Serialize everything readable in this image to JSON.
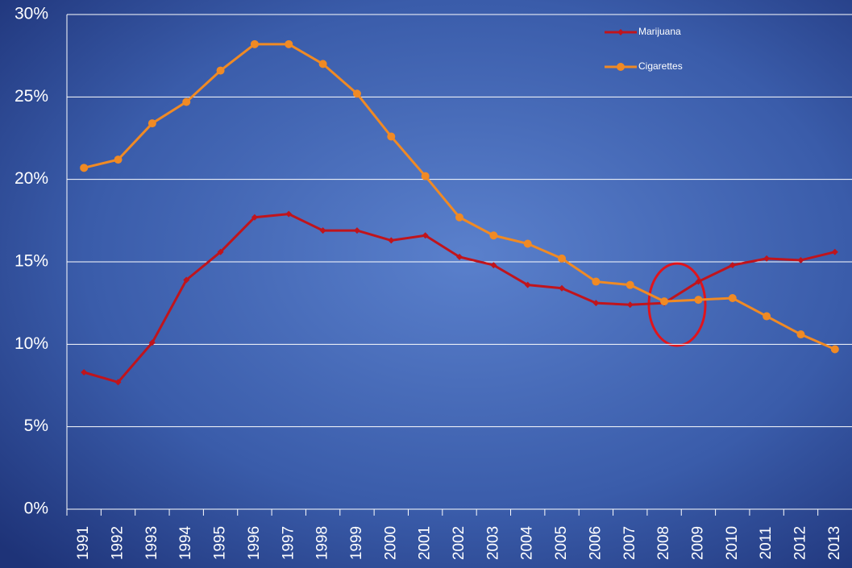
{
  "chart_data": {
    "type": "line",
    "categories": [
      "1991",
      "1992",
      "1993",
      "1994",
      "1995",
      "1996",
      "1997",
      "1998",
      "1999",
      "2000",
      "2001",
      "2002",
      "2003",
      "2004",
      "2005",
      "2006",
      "2007",
      "2008",
      "2009",
      "2010",
      "2011",
      "2012",
      "2013"
    ],
    "series": [
      {
        "name": "Marijuana",
        "color": "#c0141c",
        "marker": "diamond",
        "values": [
          8.3,
          7.7,
          10.1,
          13.9,
          15.6,
          17.7,
          17.9,
          16.9,
          16.9,
          16.3,
          16.6,
          15.3,
          14.8,
          13.6,
          13.4,
          12.5,
          12.4,
          12.5,
          13.8,
          14.8,
          15.2,
          15.1,
          15.6
        ]
      },
      {
        "name": "Cigarettes",
        "color": "#f08a24",
        "marker": "circle",
        "values": [
          20.7,
          21.2,
          23.4,
          24.7,
          26.6,
          28.2,
          28.2,
          27.0,
          25.2,
          22.6,
          20.2,
          17.7,
          16.6,
          16.1,
          15.2,
          13.8,
          13.6,
          12.6,
          12.7,
          12.8,
          11.7,
          10.6,
          9.7
        ]
      }
    ],
    "ylim": [
      0,
      30
    ],
    "yticks": [
      {
        "value": 0,
        "label": "0%"
      },
      {
        "value": 5,
        "label": "5%"
      },
      {
        "value": 10,
        "label": "10%"
      },
      {
        "value": 15,
        "label": "15%"
      },
      {
        "value": 20,
        "label": "20%"
      },
      {
        "value": 25,
        "label": "25%"
      },
      {
        "value": 30,
        "label": "30%"
      }
    ],
    "grid": true,
    "legend": "top-right"
  }
}
